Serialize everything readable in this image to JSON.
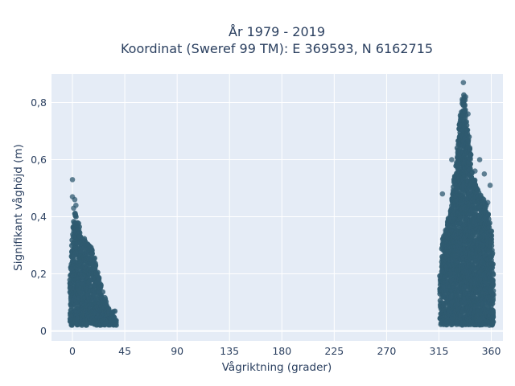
{
  "chart_data": {
    "type": "scatter",
    "title_line1": "År 1979 - 2019",
    "title_line2": "Koordinat (Sweref 99 TM): E 369593, N 6162715",
    "xlabel": "Vågriktning (grader)",
    "ylabel": "Signifikant våghöjd (m)",
    "xlim": [
      -18,
      370
    ],
    "ylim": [
      -0.035,
      0.9
    ],
    "xticks": [
      0,
      45,
      90,
      135,
      180,
      225,
      270,
      315,
      360
    ],
    "xtick_labels": [
      "0",
      "45",
      "90",
      "135",
      "180",
      "225",
      "270",
      "315",
      "360"
    ],
    "yticks": [
      0,
      0.2,
      0.4,
      0.6,
      0.8
    ],
    "ytick_labels": [
      "0",
      "0,2",
      "0,4",
      "0,6",
      "0,8"
    ],
    "grid": true,
    "legend": "none",
    "marker_color": "#2f5a70",
    "plot_bg": "#e5ecf6",
    "clusters": [
      {
        "name": "",
        "x_range": [
          -2,
          38
        ],
        "envelope_x": [
          -2,
          0,
          2,
          5,
          8,
          12,
          16,
          20,
          24,
          28,
          32,
          36,
          38
        ],
        "envelope_ymax": [
          0.22,
          0.34,
          0.42,
          0.38,
          0.33,
          0.32,
          0.3,
          0.24,
          0.17,
          0.12,
          0.07,
          0.05,
          0.03
        ]
      },
      {
        "name": "",
        "x_range": [
          316,
          362
        ],
        "envelope_x": [
          316,
          318,
          322,
          326,
          330,
          333,
          336,
          338,
          340,
          344,
          348,
          352,
          356,
          360,
          362
        ],
        "envelope_ymax": [
          0.2,
          0.32,
          0.37,
          0.46,
          0.6,
          0.75,
          0.84,
          0.8,
          0.72,
          0.55,
          0.5,
          0.48,
          0.44,
          0.36,
          0.25
        ]
      }
    ],
    "outliers": [
      {
        "x": 0,
        "y": 0.53
      },
      {
        "x": 0,
        "y": 0.47
      },
      {
        "x": 2,
        "y": 0.46
      },
      {
        "x": 3,
        "y": 0.44
      },
      {
        "x": 1,
        "y": 0.43
      },
      {
        "x": 336,
        "y": 0.87
      },
      {
        "x": 338,
        "y": 0.82
      },
      {
        "x": 340,
        "y": 0.76
      },
      {
        "x": 326,
        "y": 0.6
      },
      {
        "x": 350,
        "y": 0.6
      },
      {
        "x": 354,
        "y": 0.55
      },
      {
        "x": 346,
        "y": 0.56
      },
      {
        "x": 318,
        "y": 0.48
      },
      {
        "x": 359,
        "y": 0.51
      },
      {
        "x": 357,
        "y": 0.45
      }
    ]
  }
}
